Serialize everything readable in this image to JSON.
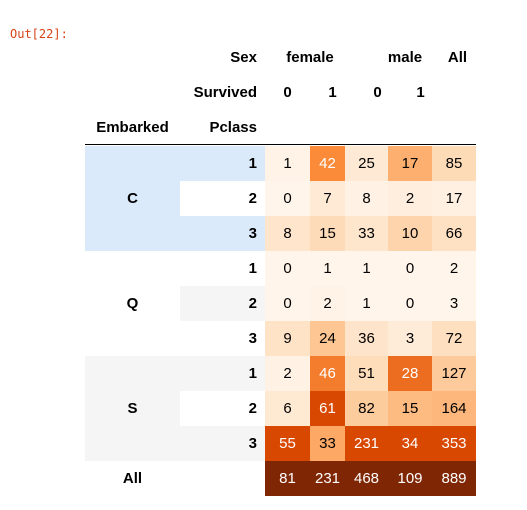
{
  "prompt": "Out[22]:",
  "header": {
    "sex_label": "Sex",
    "survived_label": "Survived",
    "embarked_label": "Embarked",
    "pclass_label": "Pclass",
    "groups": [
      "female",
      "male",
      "All"
    ],
    "subcols": [
      "0",
      "1",
      "0",
      "1"
    ]
  },
  "rows": [
    {
      "embarked": "C",
      "pclass": "1",
      "values": [
        "1",
        "42",
        "25",
        "17",
        "85"
      ]
    },
    {
      "embarked": "",
      "pclass": "2",
      "values": [
        "0",
        "7",
        "8",
        "2",
        "17"
      ]
    },
    {
      "embarked": "",
      "pclass": "3",
      "values": [
        "8",
        "15",
        "33",
        "10",
        "66"
      ]
    },
    {
      "embarked": "Q",
      "pclass": "1",
      "values": [
        "0",
        "1",
        "1",
        "0",
        "2"
      ]
    },
    {
      "embarked": "",
      "pclass": "2",
      "values": [
        "0",
        "2",
        "1",
        "0",
        "3"
      ]
    },
    {
      "embarked": "",
      "pclass": "3",
      "values": [
        "9",
        "24",
        "36",
        "3",
        "72"
      ]
    },
    {
      "embarked": "S",
      "pclass": "1",
      "values": [
        "2",
        "46",
        "51",
        "28",
        "127"
      ]
    },
    {
      "embarked": "",
      "pclass": "2",
      "values": [
        "6",
        "61",
        "82",
        "15",
        "164"
      ]
    },
    {
      "embarked": "",
      "pclass": "3",
      "values": [
        "55",
        "33",
        "231",
        "34",
        "353"
      ]
    }
  ],
  "all_row": {
    "label": "All",
    "values": [
      "81",
      "231",
      "468",
      "109",
      "889"
    ]
  },
  "colors": {
    "prompt": "#d84315",
    "highlight_group": "#dbeafb",
    "stripe": "#f5f5f5",
    "all_row_bg": "#7f2704"
  }
}
